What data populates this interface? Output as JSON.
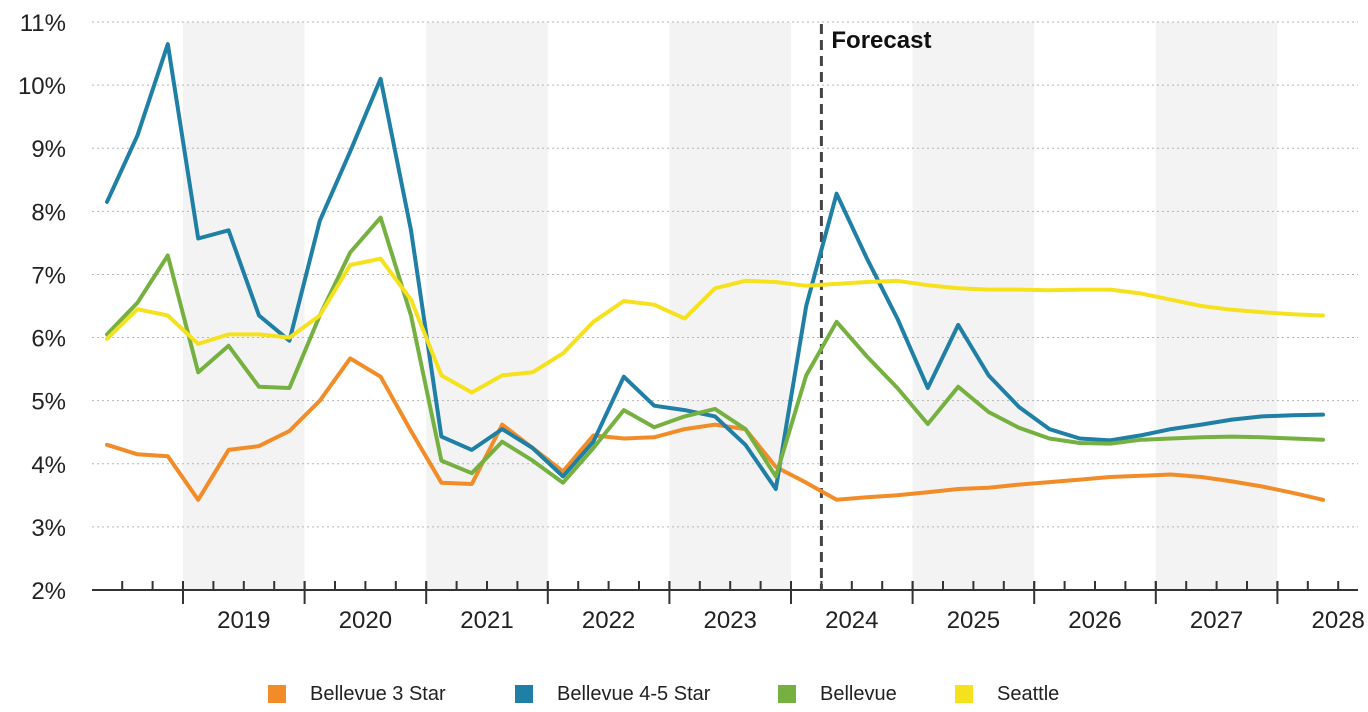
{
  "chart_data": {
    "type": "line",
    "title": "",
    "xlabel": "",
    "ylabel": "",
    "y_tick_labels": [
      "2%",
      "3%",
      "4%",
      "5%",
      "6%",
      "7%",
      "8%",
      "9%",
      "10%",
      "11%"
    ],
    "ylim": [
      2,
      11
    ],
    "year_labels": [
      "2019",
      "2020",
      "2021",
      "2022",
      "2023",
      "2024",
      "2025",
      "2026",
      "2027",
      "2028"
    ],
    "x_start": "2018 Q2",
    "x_end": "2028 Q2",
    "x": [
      "2018 Q2",
      "2018 Q3",
      "2018 Q4",
      "2019 Q1",
      "2019 Q2",
      "2019 Q3",
      "2019 Q4",
      "2020 Q1",
      "2020 Q2",
      "2020 Q3",
      "2020 Q4",
      "2021 Q1",
      "2021 Q2",
      "2021 Q3",
      "2021 Q4",
      "2022 Q1",
      "2022 Q2",
      "2022 Q3",
      "2022 Q4",
      "2023 Q1",
      "2023 Q2",
      "2023 Q3",
      "2023 Q4",
      "2024 Q1",
      "2024 Q2",
      "2024 Q3",
      "2024 Q4",
      "2025 Q1",
      "2025 Q2",
      "2025 Q3",
      "2025 Q4",
      "2026 Q1",
      "2026 Q2",
      "2026 Q3",
      "2026 Q4",
      "2027 Q1",
      "2027 Q2",
      "2027 Q3",
      "2027 Q4",
      "2028 Q1",
      "2028 Q2"
    ],
    "annotation": {
      "label": "Forecast",
      "at": "2024 Q2"
    },
    "shaded_years": [
      "2019",
      "2021",
      "2023",
      "2025",
      "2027"
    ],
    "grid": true,
    "legend_position": "bottom",
    "series": [
      {
        "name": "Bellevue 3 Star",
        "color": "#F28C28",
        "values": [
          4.3,
          4.15,
          4.12,
          3.43,
          4.22,
          4.28,
          4.52,
          5.0,
          5.67,
          5.38,
          4.52,
          3.7,
          3.68,
          4.62,
          4.25,
          3.88,
          4.45,
          4.4,
          4.42,
          4.55,
          4.62,
          4.55,
          3.95,
          3.7,
          3.43,
          3.47,
          3.5,
          3.55,
          3.6,
          3.62,
          3.67,
          3.71,
          3.75,
          3.79,
          3.81,
          3.83,
          3.79,
          3.72,
          3.64,
          3.54,
          3.43
        ]
      },
      {
        "name": "Bellevue 4-5 Star",
        "color": "#1F7FA5",
        "values": [
          8.15,
          9.2,
          10.65,
          7.57,
          7.7,
          6.35,
          5.95,
          7.85,
          8.95,
          10.1,
          7.7,
          4.43,
          4.22,
          4.55,
          4.25,
          3.8,
          4.35,
          5.38,
          4.92,
          4.85,
          4.75,
          4.3,
          3.6,
          6.5,
          8.28,
          7.25,
          6.3,
          5.2,
          6.2,
          5.4,
          4.9,
          4.55,
          4.4,
          4.37,
          4.45,
          4.55,
          4.62,
          4.7,
          4.75,
          4.77,
          4.78
        ]
      },
      {
        "name": "Bellevue",
        "color": "#76B041",
        "values": [
          6.05,
          6.55,
          7.3,
          5.45,
          5.87,
          5.22,
          5.2,
          6.35,
          7.35,
          7.9,
          6.35,
          4.05,
          3.85,
          4.35,
          4.05,
          3.7,
          4.25,
          4.85,
          4.58,
          4.75,
          4.87,
          4.55,
          3.8,
          5.4,
          6.25,
          5.7,
          5.2,
          4.63,
          5.22,
          4.82,
          4.57,
          4.4,
          4.33,
          4.32,
          4.38,
          4.4,
          4.42,
          4.43,
          4.42,
          4.4,
          4.38
        ]
      },
      {
        "name": "Seattle",
        "color": "#F5E11E",
        "values": [
          5.98,
          6.45,
          6.35,
          5.9,
          6.05,
          6.05,
          6.0,
          6.35,
          7.15,
          7.25,
          6.6,
          5.4,
          5.13,
          5.4,
          5.45,
          5.75,
          6.25,
          6.58,
          6.52,
          6.3,
          6.78,
          6.9,
          6.88,
          6.82,
          6.85,
          6.88,
          6.9,
          6.83,
          6.78,
          6.76,
          6.76,
          6.75,
          6.76,
          6.76,
          6.7,
          6.6,
          6.5,
          6.44,
          6.4,
          6.37,
          6.35
        ]
      }
    ]
  }
}
